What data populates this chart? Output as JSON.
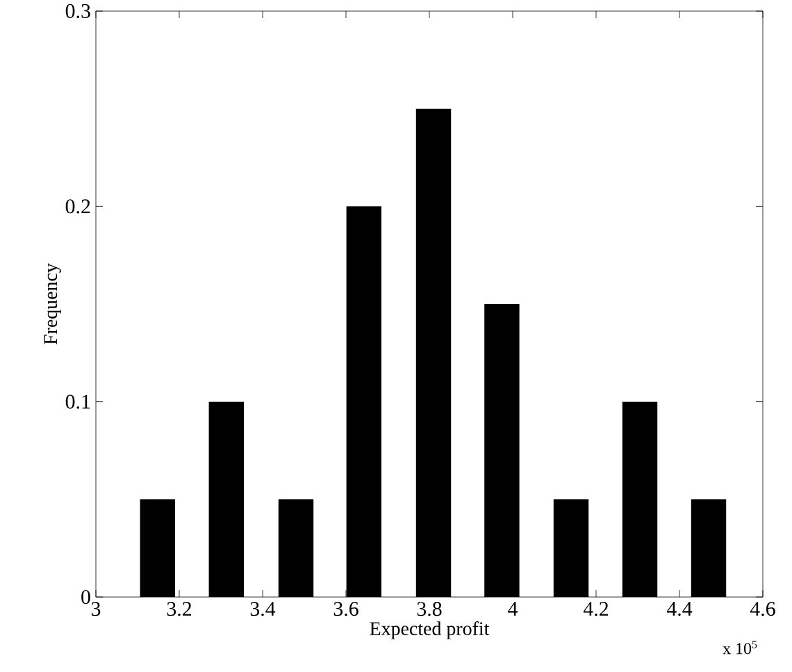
{
  "chart_data": {
    "type": "bar",
    "xlabel": "Expected profit",
    "ylabel": "Frequency",
    "x": [
      3.148,
      3.313,
      3.48,
      3.643,
      3.81,
      3.974,
      4.14,
      4.305,
      4.47
    ],
    "values": [
      0.05,
      0.1,
      0.05,
      0.2,
      0.25,
      0.15,
      0.05,
      0.1,
      0.05
    ],
    "color": "#000000",
    "xlim": [
      3,
      4.6
    ],
    "xticks": [
      3,
      3.2,
      3.4,
      3.6,
      3.8,
      4,
      4.2,
      4.4,
      4.6
    ],
    "ylim": [
      0,
      0.3
    ],
    "yticks": [
      0,
      0.1,
      0.2,
      0.3
    ],
    "annotations": [
      "x 10$^{5}$"
    ]
  }
}
